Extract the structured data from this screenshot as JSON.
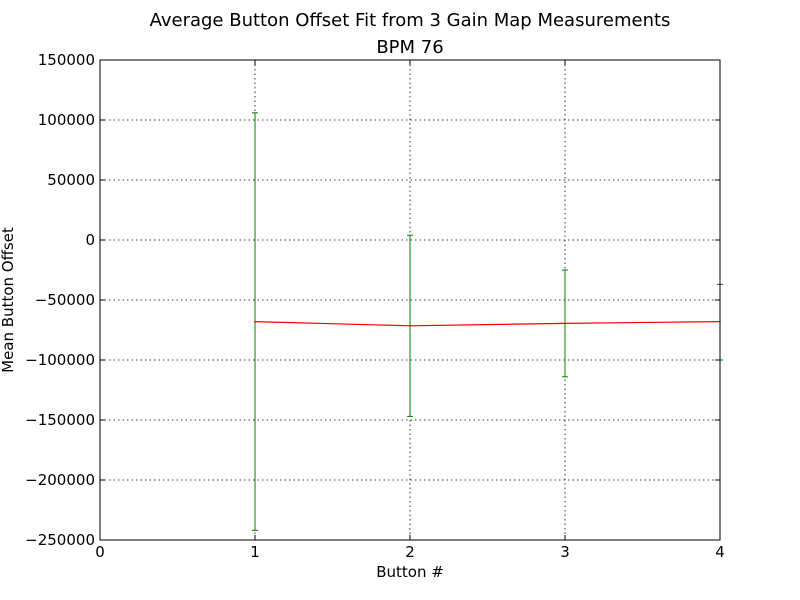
{
  "chart_data": {
    "type": "line",
    "title": "Average Button Offset Fit from 3 Gain Map Measurements",
    "subtitle": "BPM 76",
    "xlabel": "Button #",
    "ylabel": "Mean Button Offset",
    "xlim": [
      0,
      4
    ],
    "ylim": [
      -250000,
      150000
    ],
    "x_ticks": [
      0,
      1,
      2,
      3,
      4
    ],
    "y_ticks": [
      -250000,
      -200000,
      -150000,
      -100000,
      -50000,
      0,
      50000,
      100000,
      150000
    ],
    "x_tick_labels": [
      "0",
      "1",
      "2",
      "3",
      "4"
    ],
    "y_tick_labels": [
      "−250000",
      "−200000",
      "−150000",
      "−100000",
      "−50000",
      "0",
      "50000",
      "100000",
      "150000"
    ],
    "grid": true,
    "series": [
      {
        "x": [
          1,
          2,
          3,
          4
        ],
        "y": [
          -68000,
          -71500,
          -69500,
          -68000
        ],
        "error_low": [
          -242000,
          -147000,
          -114000,
          -100000
        ],
        "error_high": [
          106000,
          4000,
          -25000,
          -37000
        ],
        "line_color": "#ff0000",
        "error_color": "#008000"
      }
    ]
  }
}
